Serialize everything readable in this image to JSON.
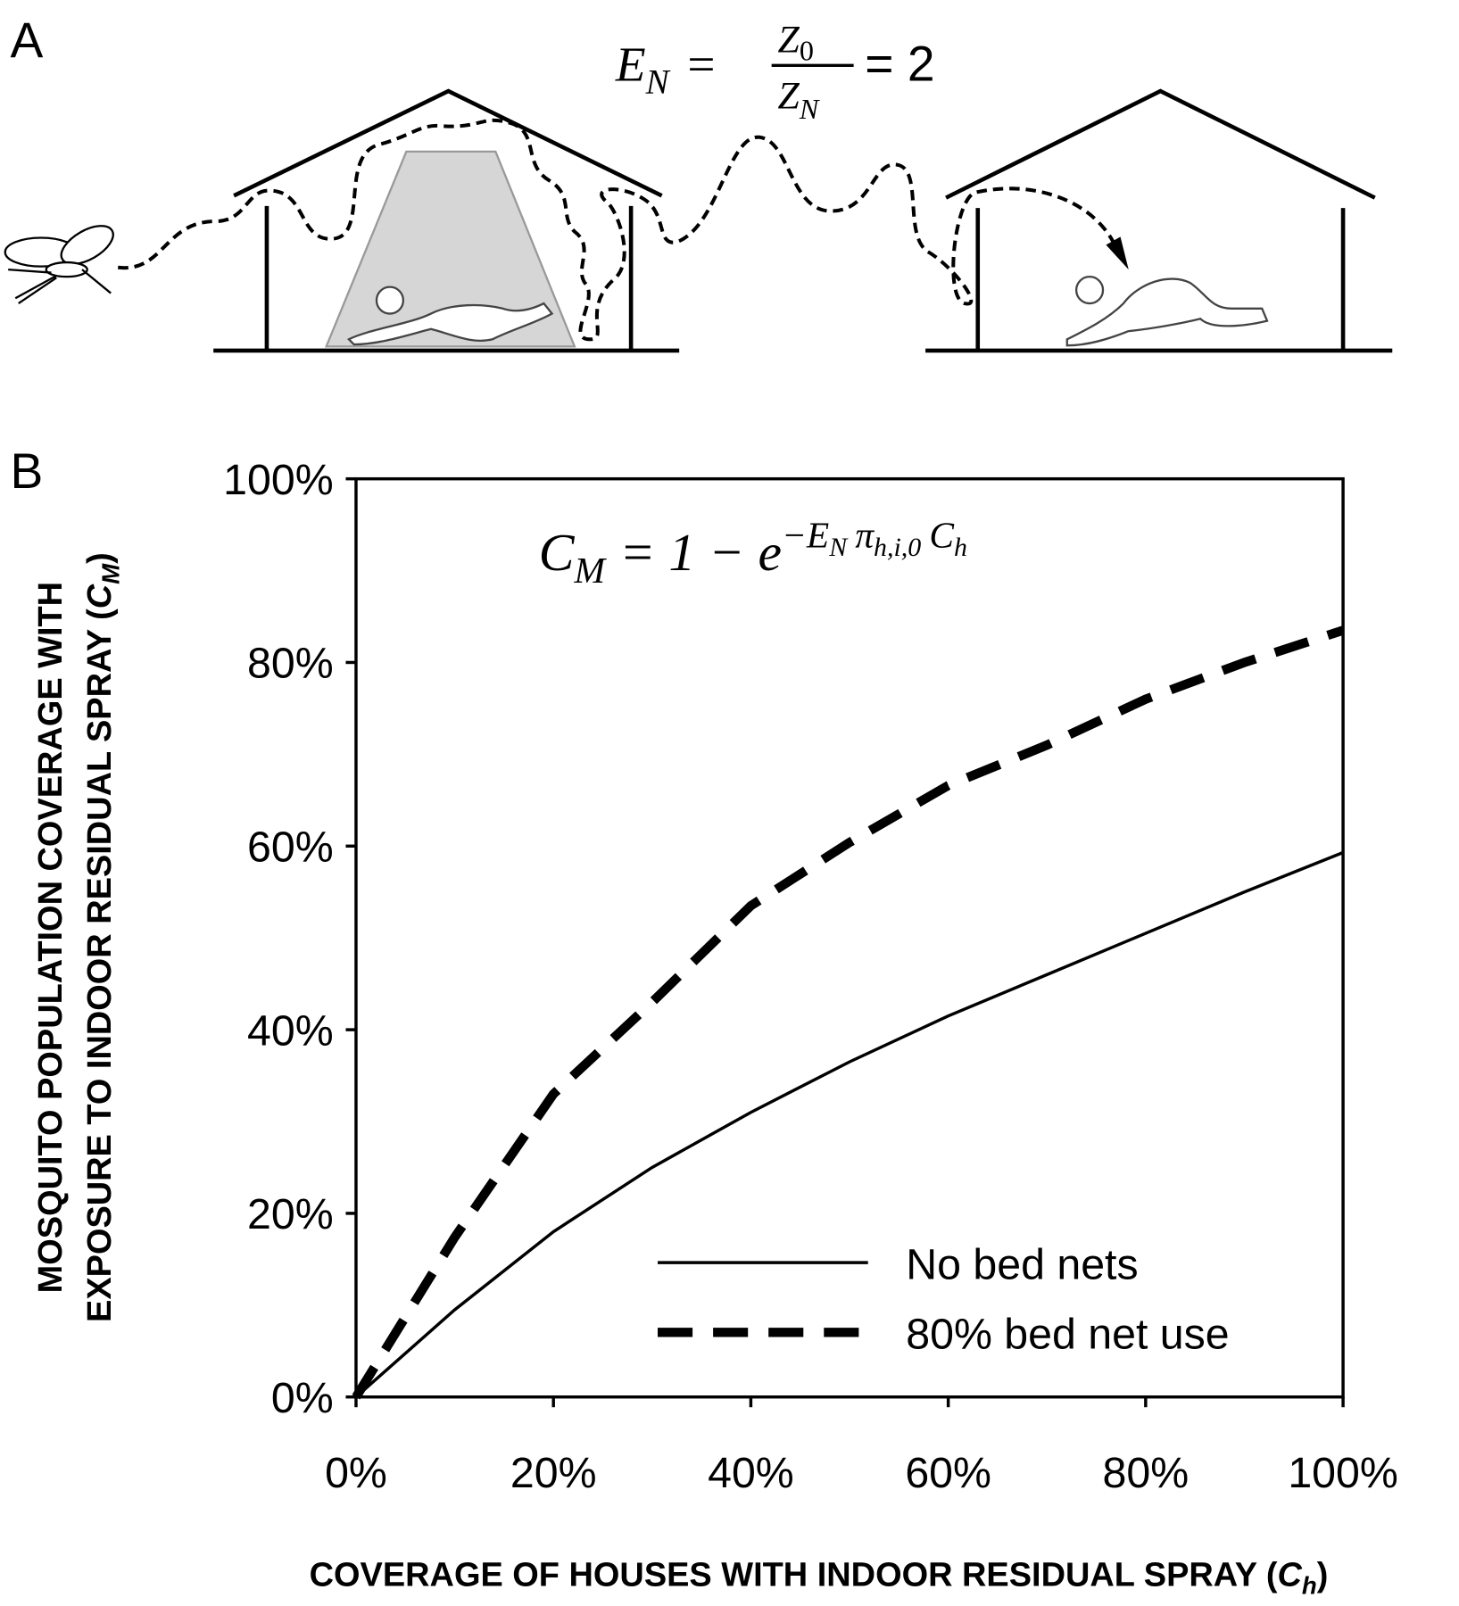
{
  "panel_a": {
    "label": "A",
    "equation": {
      "lhs": "E",
      "lhs_sub": "N",
      "eq": "=",
      "num": "Z",
      "num_sub": "0",
      "den": "Z",
      "den_sub": "N",
      "rhs": "= 2"
    }
  },
  "chart_data": {
    "type": "line",
    "panel_label": "B",
    "formula": {
      "lhs": "C",
      "lhs_sub": "M",
      "mid": "= 1 − e",
      "exp1": "−E",
      "exp1_sub": "N",
      "exp2": "π",
      "exp2_sub": "h,i,0",
      "exp3": "C",
      "exp3_sub": "h"
    },
    "xlabel": {
      "text": "COVERAGE OF HOUSES WITH INDOOR RESIDUAL SPRAY (",
      "symbol": "C",
      "sub": "h",
      "close": ")"
    },
    "ylabel": {
      "line1": "MOSQUITO POPULATION COVERAGE WITH",
      "line2": "EXPOSURE TO INDOOR RESIDUAL SPRAY (",
      "symbol": "C",
      "sub": "M",
      "close": ")"
    },
    "x": [
      0,
      10,
      20,
      30,
      40,
      50,
      60,
      70,
      80,
      90,
      100
    ],
    "series": [
      {
        "name": "No bed nets",
        "color": "#000000",
        "dash": "solid",
        "values": [
          0,
          9.5,
          18,
          25,
          31,
          36.5,
          41.5,
          46,
          50.5,
          55,
          59.3
        ]
      },
      {
        "name": "80% bed net use",
        "color": "#000000",
        "dash": "dashed",
        "values": [
          0,
          17.4,
          33,
          43,
          53.5,
          60.4,
          66.6,
          71,
          76,
          80,
          83.5
        ]
      }
    ],
    "xlim": [
      0,
      100
    ],
    "ylim": [
      0,
      100
    ],
    "xticks": [
      {
        "value": 0,
        "label": "0%"
      },
      {
        "value": 20,
        "label": "20%"
      },
      {
        "value": 40,
        "label": "40%"
      },
      {
        "value": 60,
        "label": "60%"
      },
      {
        "value": 80,
        "label": "80%"
      },
      {
        "value": 100,
        "label": "100%"
      }
    ],
    "yticks": [
      {
        "value": 0,
        "label": "0%"
      },
      {
        "value": 20,
        "label": "20%"
      },
      {
        "value": 40,
        "label": "40%"
      },
      {
        "value": 60,
        "label": "60%"
      },
      {
        "value": 80,
        "label": "80%"
      },
      {
        "value": 100,
        "label": "100%"
      }
    ],
    "grid": false,
    "legend": "lower-right"
  }
}
